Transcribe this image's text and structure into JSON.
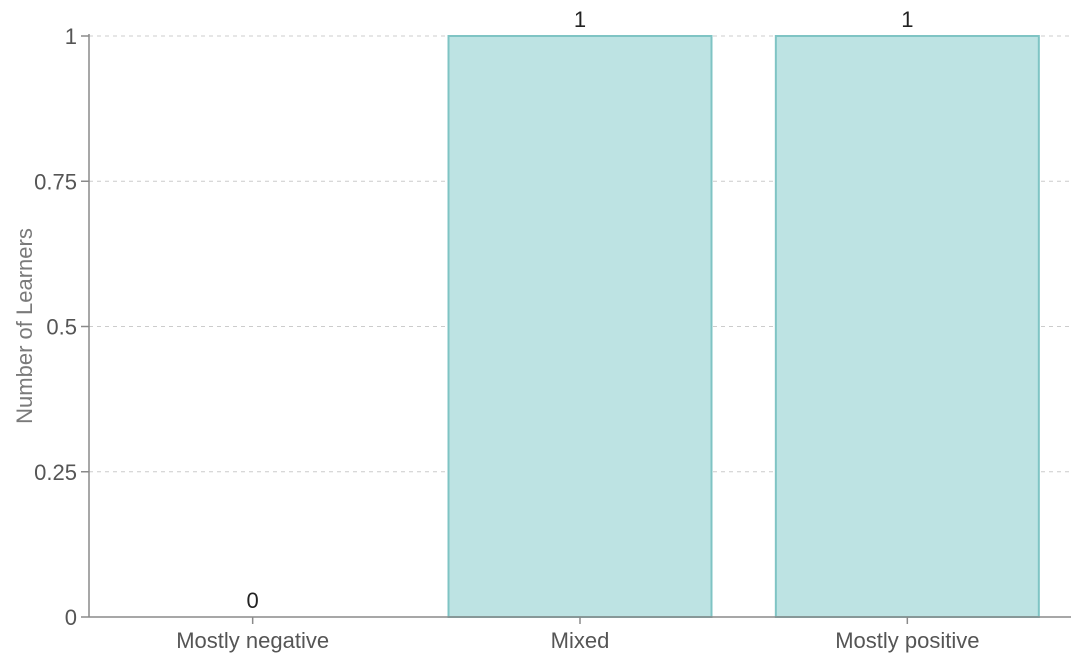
{
  "chart_data": {
    "type": "bar",
    "title": "",
    "xlabel": "",
    "ylabel": "Number of Learners",
    "categories": [
      "Mostly negative",
      "Mixed",
      "Mostly positive"
    ],
    "values": [
      0,
      1,
      1
    ],
    "data_labels": [
      "0",
      "1",
      "1"
    ],
    "ylim": [
      0,
      1
    ],
    "yticks": [
      0,
      0.25,
      0.5,
      0.75,
      1
    ],
    "ytick_labels": [
      "0",
      "0.25",
      "0.5",
      "0.75",
      "1"
    ],
    "grid": true,
    "legend": "none",
    "colors": {
      "bar_fill": "#bde3e3",
      "bar_stroke": "#7fc4c4",
      "grid": "#cccccc",
      "axis": "#8a8a8a"
    }
  }
}
